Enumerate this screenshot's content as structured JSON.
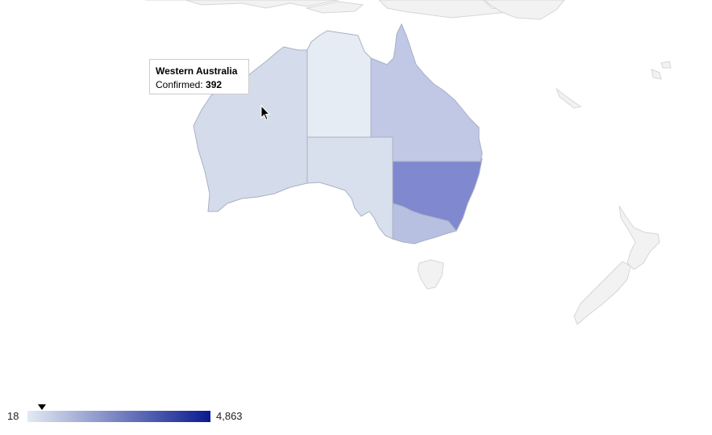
{
  "map": {
    "region": "Australia",
    "metric_label": "Confirmed",
    "color_low": "#e3eaf3",
    "color_high": "#0a1a8f",
    "land_color": "#f2f2f2",
    "states": [
      {
        "id": "WA",
        "name": "Western Australia",
        "fill": "#d4dceb"
      },
      {
        "id": "NT",
        "name": "Northern Territory",
        "fill": "#e5ecf4"
      },
      {
        "id": "SA",
        "name": "South Australia",
        "fill": "#d8e0ee"
      },
      {
        "id": "QLD",
        "name": "Queensland",
        "fill": "#c0c8e5"
      },
      {
        "id": "NSW",
        "name": "New South Wales",
        "fill": "#8088cf"
      },
      {
        "id": "VIC",
        "name": "Victoria",
        "fill": "#b8c0e1"
      },
      {
        "id": "TAS",
        "name": "Tasmania",
        "fill": "#eeeeee"
      }
    ]
  },
  "tooltip": {
    "title": "Western Australia",
    "label": "Confirmed: ",
    "value": "392",
    "confirmed": 392
  },
  "legend": {
    "min_label": "18",
    "max_label": "4,863",
    "min": 18,
    "max": 4863,
    "marker_value": 392
  },
  "cursor": {
    "icon": "mouse-pointer-icon"
  }
}
